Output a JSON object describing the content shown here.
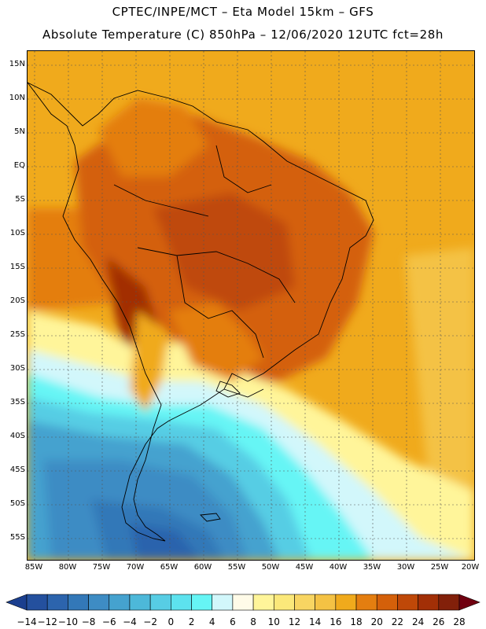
{
  "title": {
    "line1": "CPTEC/INPE/MCT –  Eta Model 15km – GFS",
    "line2": "Absolute Temperature (C) 850hPa – 12/06/2020 12UTC fct=28h"
  },
  "axes": {
    "lat_labels": [
      "15N",
      "10N",
      "5N",
      "EQ",
      "5S",
      "10S",
      "15S",
      "20S",
      "25S",
      "30S",
      "35S",
      "40S",
      "45S",
      "50S",
      "55S"
    ],
    "lon_labels": [
      "85W",
      "80W",
      "75W",
      "70W",
      "65W",
      "60W",
      "55W",
      "50W",
      "45W",
      "40W",
      "35W",
      "30W",
      "25W",
      "20W"
    ]
  },
  "legend": {
    "labels": [
      "-14",
      "-12",
      "-10",
      "-8",
      "-6",
      "-4",
      "-2",
      "0",
      "2",
      "4",
      "6",
      "8",
      "10",
      "12",
      "14",
      "16",
      "18",
      "20",
      "22",
      "24",
      "26",
      "28"
    ],
    "colors": [
      "#1b3f8f",
      "#24509e",
      "#2c64ad",
      "#3378b8",
      "#3e8cc4",
      "#45a2cf",
      "#4db8d9",
      "#57cde4",
      "#5de2ee",
      "#66f5f5",
      "#d2f7fb",
      "#fffbe8",
      "#fff59a",
      "#fbe87a",
      "#f8d562",
      "#f4c244",
      "#f0aa1c",
      "#e47e10",
      "#d4600a",
      "#bf4808",
      "#a22f06",
      "#82200a",
      "#700010"
    ]
  }
}
